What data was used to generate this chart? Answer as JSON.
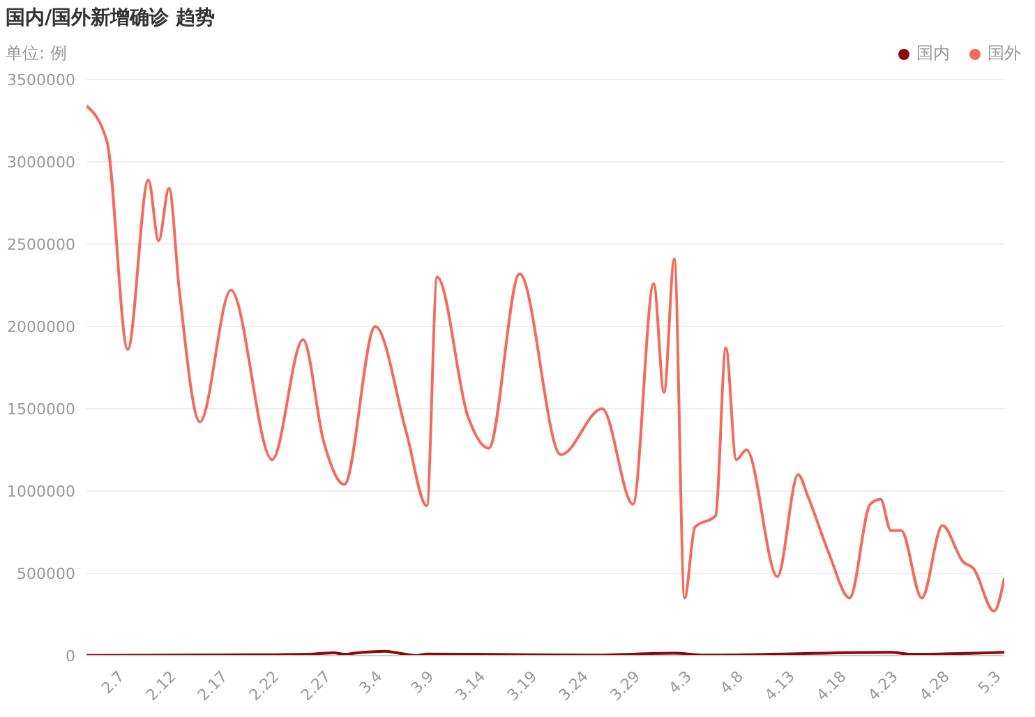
{
  "chart_data": {
    "type": "line",
    "title": "国内/国外新增确诊 趋势",
    "ylabel": "单位: 例",
    "legend": "top right",
    "grid": "y",
    "marker": "none",
    "line_style": "solid",
    "xlim": [
      "--02-04",
      "--05-04"
    ],
    "xticks": [
      {
        "value": "--02-07",
        "label": "2.7"
      },
      {
        "value": "--02-12",
        "label": "2.12"
      },
      {
        "value": "--02-17",
        "label": "2.17"
      },
      {
        "value": "--02-22",
        "label": "2.22"
      },
      {
        "value": "--02-27",
        "label": "2.27"
      },
      {
        "value": "--03-04",
        "label": "3.4"
      },
      {
        "value": "--03-09",
        "label": "3.9"
      },
      {
        "value": "--03-14",
        "label": "3.14"
      },
      {
        "value": "--03-19",
        "label": "3.19"
      },
      {
        "value": "--03-24",
        "label": "3.24"
      },
      {
        "value": "--03-29",
        "label": "3.29"
      },
      {
        "value": "--04-03",
        "label": "4.3"
      },
      {
        "value": "--04-08",
        "label": "4.8"
      },
      {
        "value": "--04-13",
        "label": "4.13"
      },
      {
        "value": "--04-18",
        "label": "4.18"
      },
      {
        "value": "--04-23",
        "label": "4.23"
      },
      {
        "value": "--04-28",
        "label": "4.28"
      },
      {
        "value": "--05-03",
        "label": "5.3"
      }
    ],
    "ylim": [
      0,
      3500000
    ],
    "yticks": [
      0,
      500000,
      1000000,
      1500000,
      2000000,
      2500000,
      3000000,
      3500000
    ],
    "series": [
      {
        "name": "国内",
        "color": "#8b0a0a",
        "x": [
          "--02-04",
          "--02-20",
          "--02-26",
          "--02-28",
          "--03-01",
          "--03-02",
          "--03-05",
          "--03-06",
          "--03-08",
          "--03-09",
          "--03-14",
          "--03-25",
          "--04-02",
          "--04-05",
          "--04-23",
          "--04-25",
          "--05-04"
        ],
        "values": [
          1000,
          5000,
          10000,
          17000,
          8000,
          15000,
          26000,
          18000,
          0,
          10000,
          8000,
          3000,
          15000,
          3000,
          20000,
          8000,
          20000
        ]
      },
      {
        "name": "国外",
        "color": "#f26b5b",
        "x": [
          "--02-04",
          "--02-06",
          "--02-08",
          "--02-10",
          "--02-11",
          "--02-12",
          "--02-13",
          "--02-15",
          "--02-18",
          "--02-22",
          "--02-25",
          "--02-27",
          "--03-01",
          "--03-04",
          "--03-07",
          "--03-09",
          "--03-10",
          "--03-13",
          "--03-15",
          "--03-18",
          "--03-22",
          "--03-26",
          "--03-29",
          "--03-31",
          "--04-01",
          "--04-02",
          "--04-03",
          "--04-04",
          "--04-06",
          "--04-07",
          "--04-08",
          "--04-09",
          "--04-12",
          "--04-14",
          "--04-15",
          "--04-17",
          "--04-19",
          "--04-21",
          "--04-22",
          "--04-23",
          "--04-24",
          "--04-26",
          "--04-28",
          "--04-30",
          "--05-01",
          "--05-03",
          "--05-04"
        ],
        "values": [
          3340000,
          3120000,
          1860000,
          2890000,
          2520000,
          2840000,
          2220000,
          1420000,
          2220000,
          1190000,
          1920000,
          1300000,
          1040000,
          2000000,
          1360000,
          910000,
          2300000,
          1450000,
          1260000,
          2320000,
          1220000,
          1500000,
          920000,
          2260000,
          1600000,
          2410000,
          350000,
          780000,
          850000,
          1870000,
          1190000,
          1250000,
          480000,
          1100000,
          960000,
          620000,
          350000,
          920000,
          950000,
          760000,
          760000,
          350000,
          790000,
          570000,
          530000,
          270000,
          470000
        ]
      }
    ]
  }
}
